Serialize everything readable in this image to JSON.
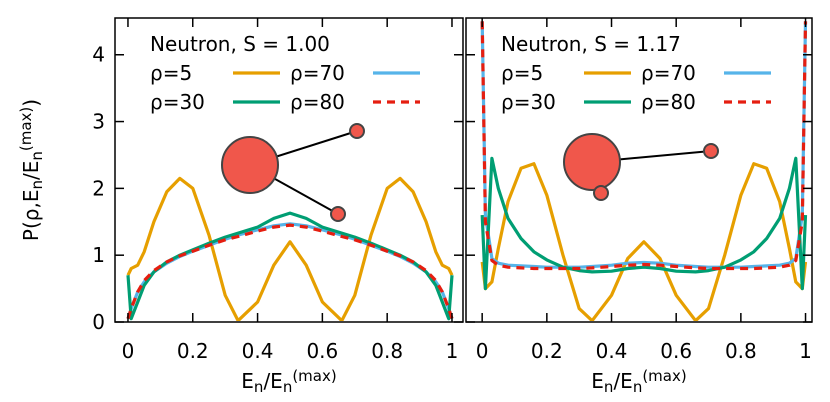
{
  "chart_data": [
    {
      "type": "line",
      "title": "Neutron, S = 1.00",
      "xlabel": [
        "E",
        "n",
        "/E",
        "n",
        "(max)"
      ],
      "ylabel": [
        "P(ρ,E",
        "n",
        "/E",
        "n",
        "(max)",
        ")"
      ],
      "show_ytick_labels": true,
      "xlim": [
        -0.04,
        1.034
      ],
      "ylim": [
        0,
        4.55
      ],
      "xticks": [
        0,
        0.2,
        0.4,
        0.6,
        0.8,
        1
      ],
      "yticks": [
        0,
        1,
        2,
        3,
        4
      ],
      "x": [
        0,
        0.01,
        0.03,
        0.05,
        0.08,
        0.12,
        0.16,
        0.2,
        0.25,
        0.3,
        0.34,
        0.4,
        0.45,
        0.5,
        0.55,
        0.6,
        0.66,
        0.7,
        0.75,
        0.8,
        0.84,
        0.88,
        0.92,
        0.95,
        0.97,
        0.99,
        1
      ],
      "series": [
        {
          "name": "ρ=5",
          "color": "#e69f00",
          "dashed": false,
          "values": [
            0.7,
            0.8,
            0.85,
            1.05,
            1.5,
            1.95,
            2.15,
            2.0,
            1.3,
            0.4,
            0.02,
            0.3,
            0.85,
            1.2,
            0.85,
            0.3,
            0.02,
            0.4,
            1.3,
            2.0,
            2.15,
            1.95,
            1.5,
            1.05,
            0.85,
            0.8,
            0.7
          ]
        },
        {
          "name": "ρ=70",
          "color": "#56b4e9",
          "dashed": false,
          "values": [
            0.05,
            0.2,
            0.45,
            0.6,
            0.75,
            0.88,
            0.98,
            1.06,
            1.15,
            1.24,
            1.3,
            1.38,
            1.44,
            1.47,
            1.44,
            1.38,
            1.3,
            1.24,
            1.15,
            1.06,
            0.98,
            0.88,
            0.75,
            0.6,
            0.45,
            0.2,
            0.05
          ]
        },
        {
          "name": "ρ=30",
          "color": "#009e73",
          "dashed": false,
          "values": [
            0.7,
            0.05,
            0.3,
            0.55,
            0.75,
            0.9,
            1.0,
            1.08,
            1.18,
            1.27,
            1.33,
            1.42,
            1.55,
            1.63,
            1.55,
            1.42,
            1.33,
            1.27,
            1.18,
            1.08,
            1.0,
            0.9,
            0.75,
            0.55,
            0.3,
            0.05,
            0.7
          ]
        },
        {
          "name": "ρ=80",
          "color": "#e51e10",
          "dashed": true,
          "values": [
            0.05,
            0.2,
            0.45,
            0.62,
            0.77,
            0.9,
            0.99,
            1.06,
            1.15,
            1.23,
            1.28,
            1.36,
            1.42,
            1.45,
            1.42,
            1.36,
            1.28,
            1.23,
            1.15,
            1.06,
            0.99,
            0.9,
            0.77,
            0.62,
            0.45,
            0.2,
            0.05
          ]
        }
      ]
    },
    {
      "type": "line",
      "title": "Neutron, S = 1.17",
      "xlabel": [
        "E",
        "n",
        "/E",
        "n",
        "(max)"
      ],
      "show_ytick_labels": false,
      "xlim": [
        -0.05,
        1.02
      ],
      "ylim": [
        0,
        4.55
      ],
      "xticks": [
        0,
        0.2,
        0.4,
        0.6,
        0.8,
        1
      ],
      "yticks": [
        0,
        1,
        2,
        3,
        4
      ],
      "x": [
        0,
        0.01,
        0.03,
        0.05,
        0.08,
        0.12,
        0.16,
        0.2,
        0.25,
        0.3,
        0.34,
        0.4,
        0.45,
        0.5,
        0.55,
        0.6,
        0.66,
        0.7,
        0.75,
        0.8,
        0.84,
        0.88,
        0.92,
        0.95,
        0.97,
        0.99,
        1
      ],
      "series": [
        {
          "name": "ρ=5",
          "color": "#e69f00",
          "dashed": false,
          "values": [
            0.9,
            0.5,
            0.6,
            1.1,
            1.8,
            2.3,
            2.37,
            1.9,
            1.0,
            0.2,
            0.02,
            0.4,
            0.95,
            1.2,
            0.95,
            0.4,
            0.02,
            0.2,
            1.0,
            1.9,
            2.37,
            2.3,
            1.8,
            1.1,
            0.6,
            0.5,
            0.9
          ]
        },
        {
          "name": "ρ=70",
          "color": "#56b4e9",
          "dashed": false,
          "values": [
            4.5,
            1.6,
            0.95,
            0.88,
            0.85,
            0.84,
            0.83,
            0.82,
            0.82,
            0.82,
            0.83,
            0.85,
            0.88,
            0.89,
            0.88,
            0.85,
            0.83,
            0.82,
            0.82,
            0.82,
            0.83,
            0.84,
            0.85,
            0.88,
            0.95,
            1.6,
            4.5
          ]
        },
        {
          "name": "ρ=30",
          "color": "#009e73",
          "dashed": false,
          "values": [
            1.6,
            0.5,
            2.45,
            2.0,
            1.55,
            1.25,
            1.05,
            0.93,
            0.82,
            0.77,
            0.75,
            0.76,
            0.8,
            0.82,
            0.8,
            0.76,
            0.75,
            0.77,
            0.82,
            0.93,
            1.05,
            1.25,
            1.55,
            2.0,
            2.45,
            0.5,
            1.6
          ]
        },
        {
          "name": "ρ=80",
          "color": "#e51e10",
          "dashed": true,
          "values": [
            4.5,
            1.5,
            0.92,
            0.85,
            0.82,
            0.81,
            0.8,
            0.8,
            0.8,
            0.8,
            0.81,
            0.83,
            0.85,
            0.86,
            0.85,
            0.83,
            0.81,
            0.8,
            0.8,
            0.8,
            0.8,
            0.81,
            0.82,
            0.85,
            0.92,
            1.5,
            4.5
          ]
        }
      ]
    }
  ]
}
